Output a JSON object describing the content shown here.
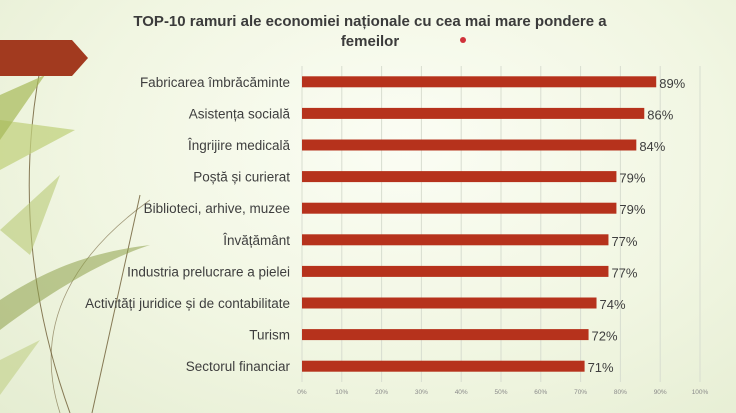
{
  "chart_data": {
    "type": "bar",
    "orientation": "horizontal",
    "title": "TOP-10 ramuri ale economiei naționale cu cea mai mare pondere a femeilor",
    "categories": [
      "Fabricarea îmbrăcăminte",
      "Asistența socială",
      "Îngrijire medicală",
      "Poștă și curierat",
      "Biblioteci, arhive, muzee",
      "Învățământ",
      "Industria prelucrare a pielei",
      "Activități juridice și de contabilitate",
      "Turism",
      "Sectorul financiar"
    ],
    "values": [
      89,
      86,
      84,
      79,
      79,
      77,
      77,
      74,
      72,
      71
    ],
    "data_labels": [
      "89%",
      "86%",
      "84%",
      "79%",
      "79%",
      "77%",
      "77%",
      "74%",
      "72%",
      "71%"
    ],
    "xlim": [
      0,
      100
    ],
    "ticks": [
      0,
      10,
      20,
      30,
      40,
      50,
      60,
      70,
      80,
      90,
      100
    ],
    "tick_labels": [
      "0%",
      "10%",
      "20%",
      "30%",
      "40%",
      "50%",
      "60%",
      "70%",
      "80%",
      "90%",
      "100%"
    ],
    "grid": true,
    "bar_color": "#b6321c",
    "grid_color": "#d8ddd0"
  },
  "theme": {
    "accent_color": "#a23a1f",
    "dot_color": "#d0323a"
  }
}
